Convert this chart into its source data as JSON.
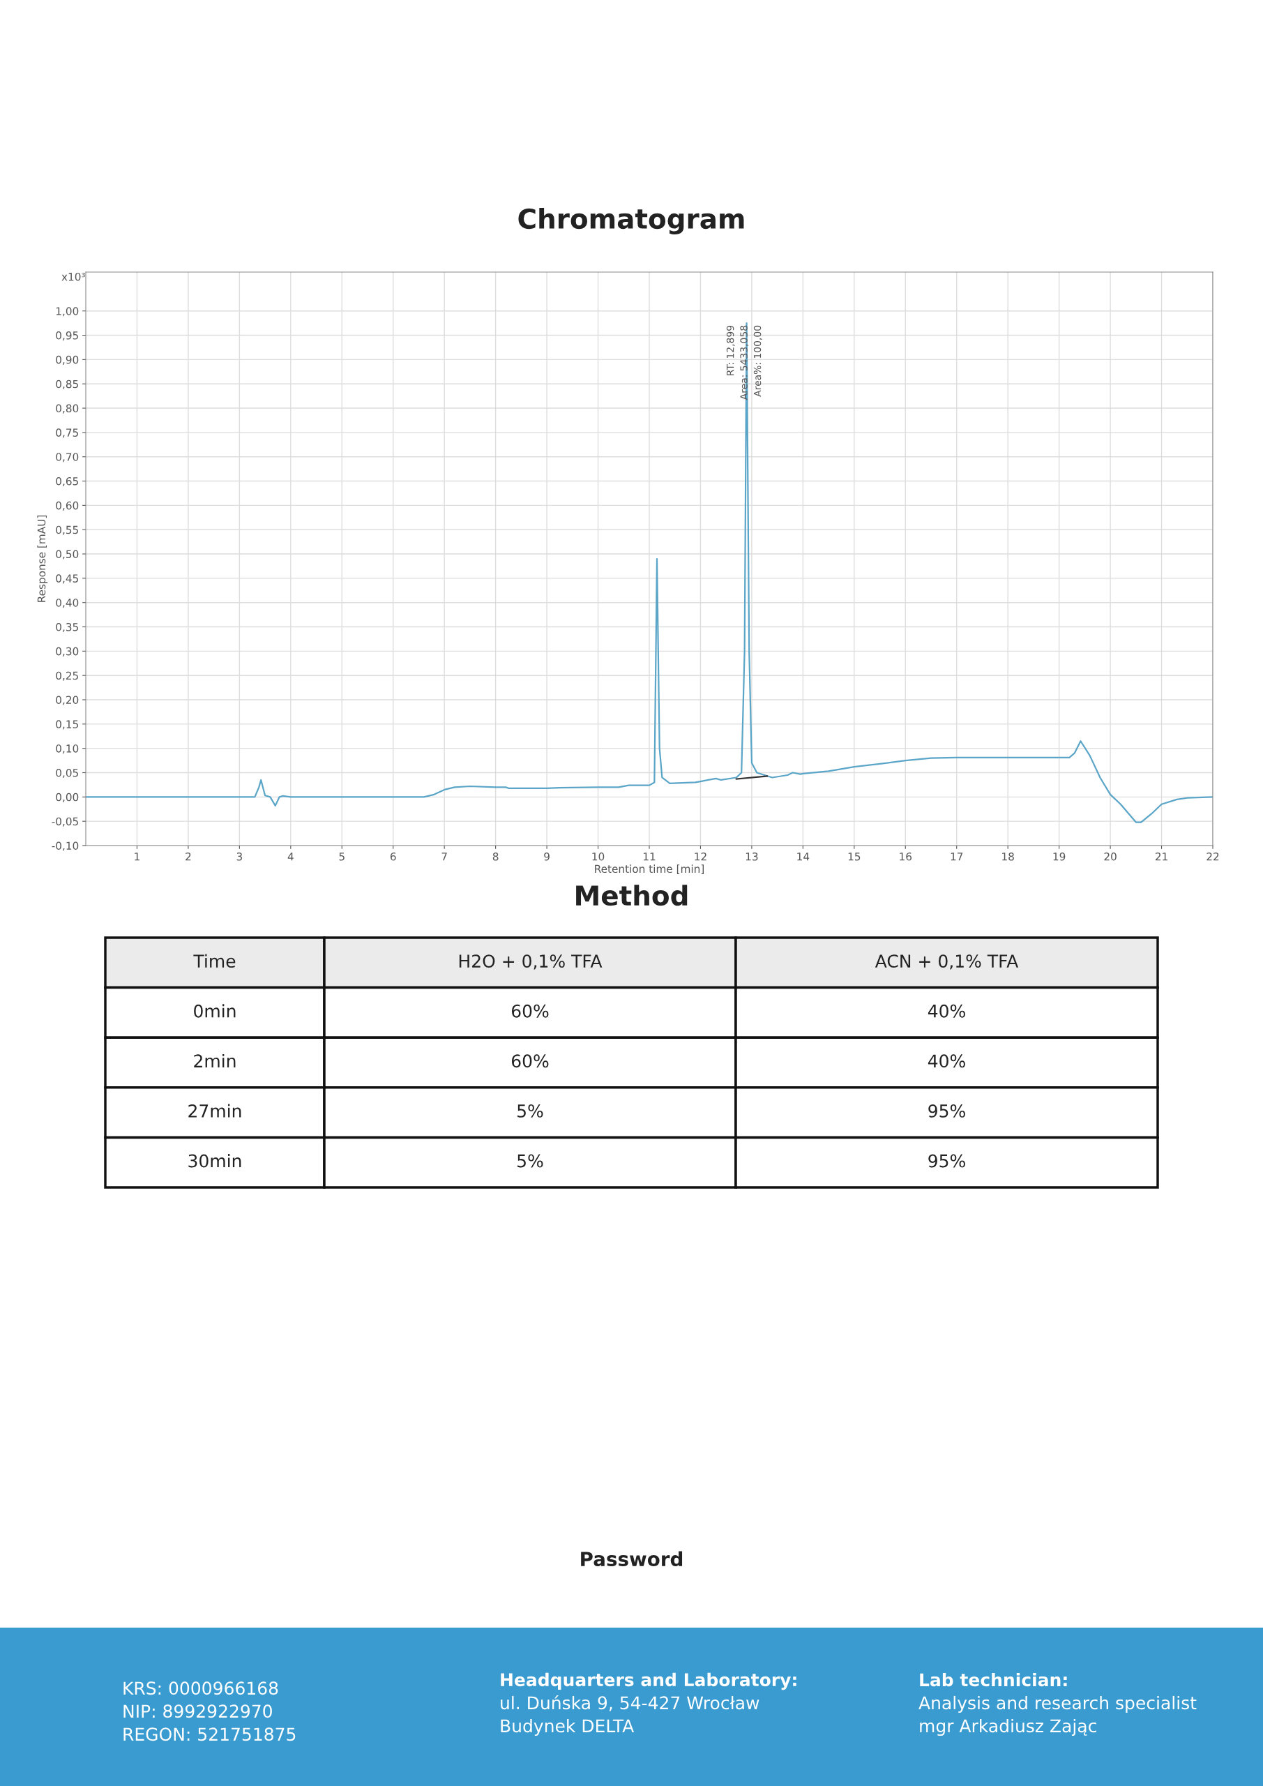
{
  "chart_data": {
    "type": "line",
    "title": "Chromatogram",
    "xlabel": "Retention time [min]",
    "ylabel": "Response [mAU]",
    "xlim": [
      0,
      22
    ],
    "xticks": [
      1,
      2,
      3,
      4,
      5,
      6,
      7,
      8,
      9,
      10,
      11,
      12,
      13,
      14,
      15,
      16,
      17,
      18,
      19,
      20,
      21,
      22
    ],
    "ylim": [
      -0.1,
      1.08
    ],
    "yticks": [
      {
        "value": -0.1,
        "label": "-0,10"
      },
      {
        "value": -0.05,
        "label": "-0,05"
      },
      {
        "value": 0,
        "label": "0,00"
      },
      {
        "value": 0.05,
        "label": "0,05"
      },
      {
        "value": 0.1,
        "label": "0,10"
      },
      {
        "value": 0.15,
        "label": "0,15"
      },
      {
        "value": 0.2,
        "label": "0,20"
      },
      {
        "value": 0.25,
        "label": "0,25"
      },
      {
        "value": 0.3,
        "label": "0,30"
      },
      {
        "value": 0.35,
        "label": "0,35"
      },
      {
        "value": 0.4,
        "label": "0,40"
      },
      {
        "value": 0.45,
        "label": "0,45"
      },
      {
        "value": 0.5,
        "label": "0,50"
      },
      {
        "value": 0.55,
        "label": "0,55"
      },
      {
        "value": 0.6,
        "label": "0,60"
      },
      {
        "value": 0.65,
        "label": "0,65"
      },
      {
        "value": 0.7,
        "label": "0,70"
      },
      {
        "value": 0.75,
        "label": "0,75"
      },
      {
        "value": 0.8,
        "label": "0,80"
      },
      {
        "value": 0.85,
        "label": "0,85"
      },
      {
        "value": 0.9,
        "label": "0,90"
      },
      {
        "value": 0.95,
        "label": "0,95"
      },
      {
        "value": 1.0,
        "label": "1,00"
      }
    ],
    "grid": true,
    "marker": "none",
    "line_style": "solid",
    "series": [
      {
        "color": "#5aa5c8",
        "x": [
          0,
          3.3,
          3.38,
          3.42,
          3.5,
          3.6,
          3.7,
          3.78,
          3.85,
          4,
          6.6,
          6.8,
          7.0,
          7.2,
          7.5,
          8,
          8.2,
          8.25,
          9,
          9.25,
          10,
          10.4,
          10.6,
          11.0,
          11.1,
          11.15,
          11.2,
          11.25,
          11.4,
          11.9,
          12.0,
          12.3,
          12.4,
          12.7,
          12.8,
          12.86,
          12.9,
          12.95,
          13.0,
          13.1,
          13.4,
          13.7,
          13.8,
          13.95,
          14.0,
          14.5,
          15.0,
          15.5,
          16.0,
          16.5,
          17.0,
          19.2,
          19.3,
          19.42,
          19.6,
          19.8,
          20.0,
          20.2,
          20.5,
          20.6,
          20.8,
          21.0,
          21.3,
          21.5,
          22
        ],
        "values": [
          0,
          0,
          0.02,
          0.035,
          0.003,
          0,
          -0.018,
          0,
          0.002,
          0,
          0,
          0.005,
          0.015,
          0.02,
          0.022,
          0.02,
          0.02,
          0.018,
          0.018,
          0.019,
          0.02,
          0.02,
          0.024,
          0.024,
          0.03,
          0.49,
          0.1,
          0.04,
          0.028,
          0.03,
          0.032,
          0.038,
          0.035,
          0.04,
          0.05,
          0.3,
          0.975,
          0.3,
          0.07,
          0.05,
          0.04,
          0.045,
          0.05,
          0.047,
          0.048,
          0.053,
          0.062,
          0.068,
          0.075,
          0.08,
          0.081,
          0.081,
          0.09,
          0.115,
          0.085,
          0.04,
          0.005,
          -0.015,
          -0.052,
          -0.052,
          -0.035,
          -0.015,
          -0.005,
          -0.002,
          0
        ]
      },
      {
        "type": "line",
        "color": "#333333",
        "x": [
          12.7,
          13.3
        ],
        "values": [
          0.037,
          0.043
        ]
      }
    ],
    "annotations": [
      "x10³",
      "RT: 12,899",
      "Area: 5433,058",
      "Area%: 100,00",
      "Method",
      "Time",
      "H2O + 0,1% TFA",
      "ACN + 0,1% TFA",
      "0min",
      "60%",
      "40%",
      "2min",
      "60%",
      "40%",
      "27min",
      "5%",
      "95%",
      "30min",
      "5%",
      "95%",
      "Password",
      "KRS: 0000966168",
      "NIP: 8992922970",
      "REGON: 521751875",
      "Headquarters and Laboratory:",
      "ul. Duńska 9, 54-427 Wrocław",
      "Budynek DELTA",
      "Lab technician:",
      "Analysis and research specialist",
      "mgr Arkadiusz Zając"
    ]
  }
}
